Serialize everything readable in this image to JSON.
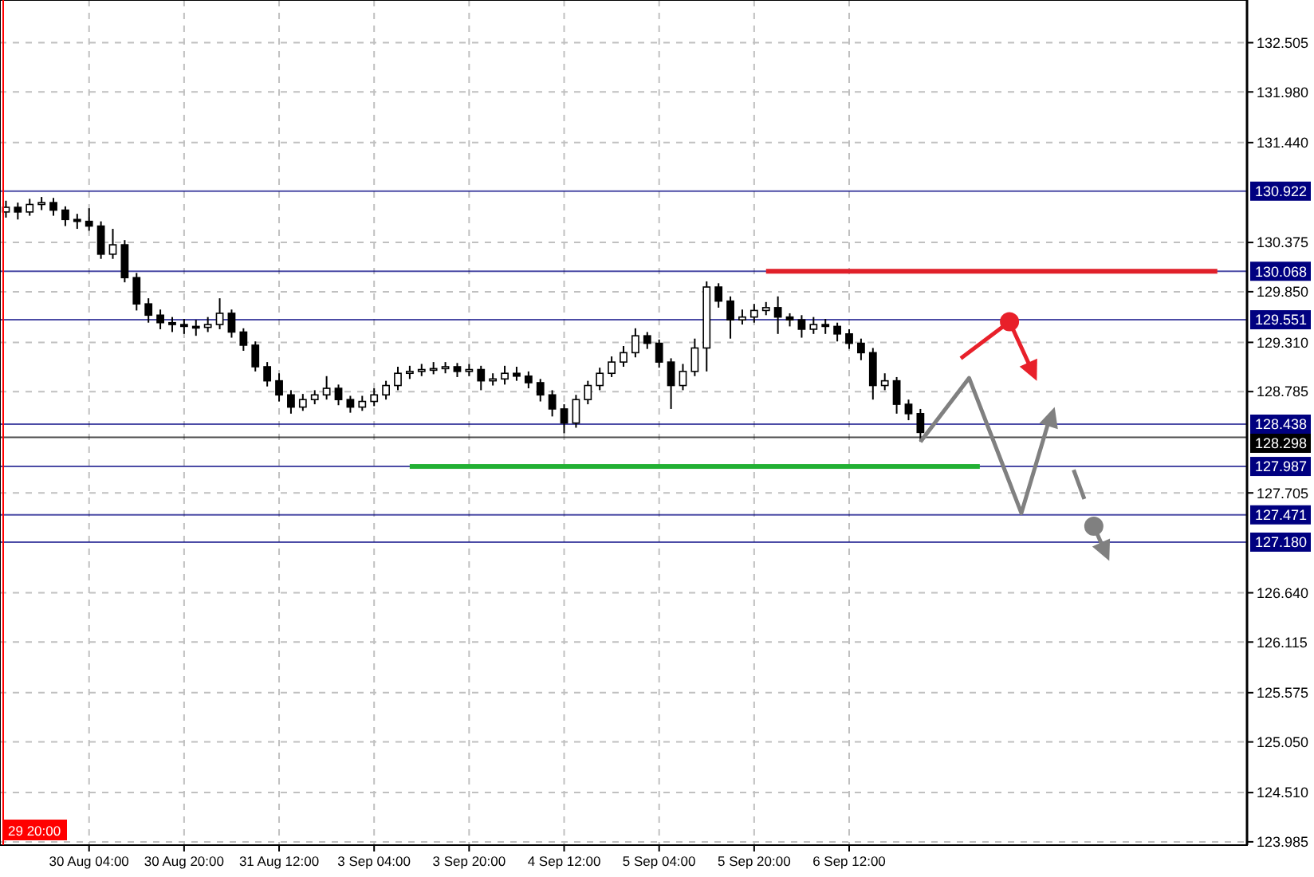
{
  "chart_data": {
    "type": "candlestick",
    "categories": [
      null,
      null,
      null,
      null,
      null,
      null,
      null,
      "30 Aug 04:00",
      null,
      null,
      null,
      null,
      null,
      null,
      null,
      "30 Aug 20:00",
      null,
      null,
      null,
      null,
      null,
      null,
      null,
      "31 Aug 12:00",
      null,
      null,
      null,
      null,
      null,
      null,
      null,
      "3 Sep 04:00",
      null,
      null,
      null,
      null,
      null,
      null,
      null,
      "3 Sep 20:00",
      null,
      null,
      null,
      null,
      null,
      null,
      null,
      "4 Sep 12:00",
      null,
      null,
      null,
      null,
      null,
      null,
      null,
      "5 Sep 04:00",
      null,
      null,
      null,
      null,
      null,
      null,
      null,
      "5 Sep 20:00",
      null,
      null,
      null,
      null,
      null,
      null,
      null,
      "6 Sep 12:00",
      null,
      null,
      null,
      null,
      null,
      null,
      null,
      null,
      null,
      null,
      null,
      null,
      null,
      null,
      null,
      null,
      null,
      null,
      null,
      null,
      null,
      null,
      null,
      null,
      null,
      null,
      null,
      null,
      null,
      null,
      null,
      null,
      null
    ],
    "ohlc": [
      [
        130.7,
        130.82,
        130.64,
        130.75
      ],
      [
        130.75,
        130.8,
        130.62,
        130.7
      ],
      [
        130.7,
        130.84,
        130.66,
        130.78
      ],
      [
        130.78,
        130.86,
        130.72,
        130.8
      ],
      [
        130.8,
        130.85,
        130.66,
        130.72
      ],
      [
        130.72,
        130.76,
        130.55,
        130.62
      ],
      [
        130.62,
        130.68,
        130.52,
        130.6
      ],
      [
        130.6,
        130.74,
        130.5,
        130.55
      ],
      [
        130.55,
        130.6,
        130.2,
        130.25
      ],
      [
        130.25,
        130.52,
        130.2,
        130.35
      ],
      [
        130.35,
        130.4,
        129.95,
        130.0
      ],
      [
        130.0,
        130.05,
        129.65,
        129.72
      ],
      [
        129.72,
        129.78,
        129.52,
        129.6
      ],
      [
        129.6,
        129.66,
        129.45,
        129.52
      ],
      [
        129.52,
        129.58,
        129.42,
        129.5
      ],
      [
        129.5,
        129.56,
        129.4,
        129.48
      ],
      [
        129.48,
        129.55,
        129.38,
        129.47
      ],
      [
        129.47,
        129.58,
        129.42,
        129.5
      ],
      [
        129.5,
        129.78,
        129.45,
        129.62
      ],
      [
        129.62,
        129.66,
        129.36,
        129.42
      ],
      [
        129.42,
        129.46,
        129.22,
        129.28
      ],
      [
        129.28,
        129.32,
        129.0,
        129.05
      ],
      [
        129.05,
        129.1,
        128.84,
        128.9
      ],
      [
        128.9,
        128.98,
        128.68,
        128.75
      ],
      [
        128.75,
        128.8,
        128.55,
        128.62
      ],
      [
        128.62,
        128.76,
        128.58,
        128.7
      ],
      [
        128.7,
        128.8,
        128.65,
        128.75
      ],
      [
        128.75,
        128.95,
        128.7,
        128.82
      ],
      [
        128.82,
        128.86,
        128.64,
        128.7
      ],
      [
        128.7,
        128.74,
        128.56,
        128.62
      ],
      [
        128.62,
        128.74,
        128.58,
        128.68
      ],
      [
        128.68,
        128.82,
        128.63,
        128.75
      ],
      [
        128.75,
        128.9,
        128.7,
        128.85
      ],
      [
        128.85,
        129.05,
        128.8,
        128.98
      ],
      [
        128.98,
        129.06,
        128.92,
        129.0
      ],
      [
        129.0,
        129.08,
        128.95,
        129.02
      ],
      [
        129.02,
        129.1,
        128.97,
        129.03
      ],
      [
        129.03,
        129.1,
        128.98,
        129.05
      ],
      [
        129.05,
        129.09,
        128.94,
        129.0
      ],
      [
        129.0,
        129.08,
        128.95,
        129.02
      ],
      [
        129.02,
        129.06,
        128.8,
        128.9
      ],
      [
        128.9,
        128.98,
        128.85,
        128.92
      ],
      [
        128.92,
        129.06,
        128.86,
        128.98
      ],
      [
        128.98,
        129.05,
        128.9,
        128.95
      ],
      [
        128.95,
        129.0,
        128.82,
        128.88
      ],
      [
        128.88,
        128.92,
        128.68,
        128.75
      ],
      [
        128.75,
        128.8,
        128.52,
        128.6
      ],
      [
        128.6,
        128.65,
        128.34,
        128.45
      ],
      [
        128.45,
        128.75,
        128.4,
        128.7
      ],
      [
        128.7,
        128.9,
        128.65,
        128.85
      ],
      [
        128.85,
        129.04,
        128.8,
        128.98
      ],
      [
        128.98,
        129.16,
        128.94,
        129.1
      ],
      [
        129.1,
        129.27,
        129.05,
        129.2
      ],
      [
        129.2,
        129.46,
        129.15,
        129.38
      ],
      [
        129.38,
        129.42,
        129.24,
        129.3
      ],
      [
        129.3,
        129.34,
        129.04,
        129.1
      ],
      [
        129.1,
        129.14,
        128.6,
        128.85
      ],
      [
        128.85,
        129.08,
        128.8,
        129.0
      ],
      [
        129.0,
        129.35,
        128.95,
        129.25
      ],
      [
        129.25,
        129.96,
        129.0,
        129.9
      ],
      [
        129.9,
        129.94,
        129.68,
        129.75
      ],
      [
        129.75,
        129.8,
        129.35,
        129.55
      ],
      [
        129.55,
        129.66,
        129.5,
        129.58
      ],
      [
        129.58,
        129.72,
        129.52,
        129.65
      ],
      [
        129.65,
        129.74,
        129.6,
        129.68
      ],
      [
        129.68,
        129.8,
        129.4,
        129.58
      ],
      [
        129.58,
        129.62,
        129.48,
        129.55
      ],
      [
        129.55,
        129.6,
        129.36,
        129.45
      ],
      [
        129.45,
        129.58,
        129.4,
        129.5
      ],
      [
        129.5,
        129.56,
        129.4,
        129.48
      ],
      [
        129.48,
        129.52,
        129.32,
        129.4
      ],
      [
        129.4,
        129.45,
        129.24,
        129.3
      ],
      [
        129.3,
        129.35,
        129.12,
        129.2
      ],
      [
        129.2,
        129.25,
        128.7,
        128.85
      ],
      [
        128.85,
        128.98,
        128.8,
        128.9
      ],
      [
        128.9,
        128.94,
        128.55,
        128.65
      ],
      [
        128.65,
        128.7,
        128.48,
        128.55
      ],
      [
        128.55,
        128.6,
        128.25,
        128.35
      ],
      null,
      null,
      null,
      null,
      null,
      null,
      null,
      null,
      null,
      null,
      null,
      null,
      null,
      null,
      null,
      null,
      null,
      null,
      null,
      null,
      null,
      null,
      null,
      null,
      null,
      null,
      null
    ],
    "ylim": [
      123.95,
      132.96
    ],
    "yticks": [
      123.985,
      {
        "value": 124.51,
        "label": "124.510"
      },
      {
        "value": 125.05,
        "label": "125.050"
      },
      125.575,
      126.115,
      {
        "value": 126.64,
        "label": "126.640"
      },
      127.705,
      128.785,
      {
        "value": 129.31,
        "label": "129.310"
      },
      {
        "value": 129.85,
        "label": "129.850"
      },
      130.375,
      {
        "value": 131.44,
        "label": "131.440"
      },
      {
        "value": 131.98,
        "label": "131.980"
      },
      132.505
    ],
    "grid": true,
    "ref_lines": [
      {
        "axis": "y",
        "value": 130.922,
        "label": "130.922",
        "color": "#000080"
      },
      {
        "axis": "y",
        "value": 130.068,
        "label": "130.068",
        "color": "#000080"
      },
      {
        "axis": "y",
        "value": 129.551,
        "label": "129.551",
        "color": "#000080"
      },
      {
        "axis": "y",
        "value": 128.438,
        "label": "128.438",
        "color": "#000080"
      },
      {
        "axis": "y",
        "value": 128.298,
        "label": "128.298",
        "color": "#000000"
      },
      {
        "axis": "y",
        "value": 127.987,
        "label": "127.987",
        "color": "#000080"
      },
      {
        "axis": "y",
        "value": 127.471,
        "label": "127.471",
        "color": "#000080"
      },
      {
        "axis": "y",
        "value": 127.18,
        "label": "127.180",
        "color": "#000080"
      }
    ],
    "annotations": [
      "29 20:00"
    ]
  }
}
